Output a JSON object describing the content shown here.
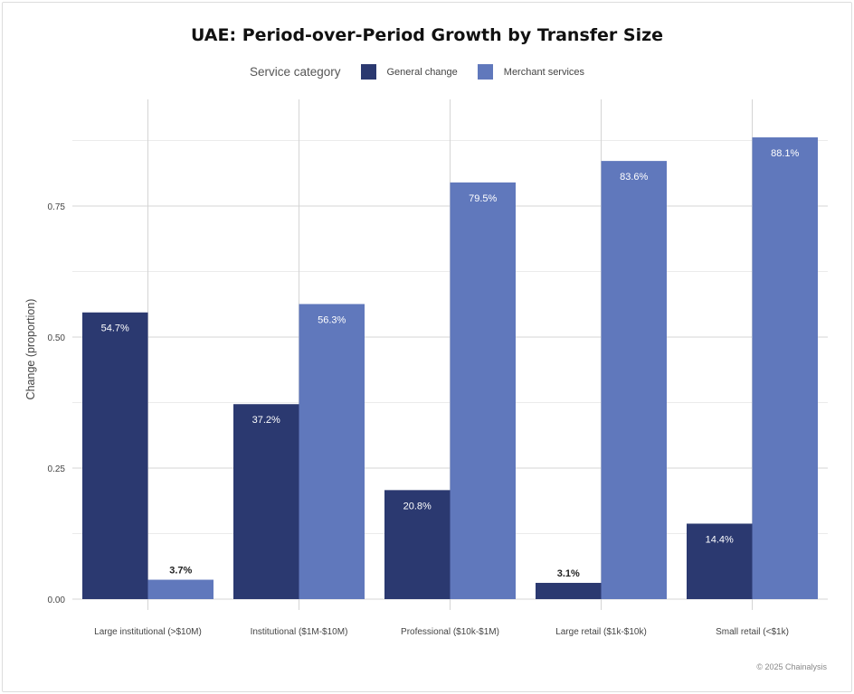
{
  "footer": {
    "credit": "© 2025 Chainalysis"
  },
  "chart_data": {
    "type": "bar",
    "title": "UAE: Period-over-Period Growth by Transfer Size",
    "xlabel": "",
    "ylabel": "Change (proportion)",
    "ylim": [
      0,
      0.92
    ],
    "yticks": [
      0.0,
      0.25,
      0.5,
      0.75
    ],
    "ytick_labels": [
      "0.00",
      "0.25",
      "0.50",
      "0.75"
    ],
    "grid": true,
    "legend": {
      "title": "Service category",
      "placement": "top"
    },
    "categories": [
      "Large institutional (>$10M)",
      "Institutional ($1M-$10M)",
      "Professional ($10k-$1M)",
      "Large retail ($1k-$10k)",
      "Small retail (<$1k)"
    ],
    "series": [
      {
        "name": "General change",
        "color": "#2b3970",
        "values": [
          0.547,
          0.372,
          0.208,
          0.031,
          0.144
        ],
        "labels": [
          "54.7%",
          "37.2%",
          "20.8%",
          "3.1%",
          "14.4%"
        ]
      },
      {
        "name": "Merchant services",
        "color": "#6078bc",
        "values": [
          0.037,
          0.563,
          0.795,
          0.836,
          0.881
        ],
        "labels": [
          "3.7%",
          "56.3%",
          "79.5%",
          "83.6%",
          "88.1%"
        ]
      }
    ]
  }
}
